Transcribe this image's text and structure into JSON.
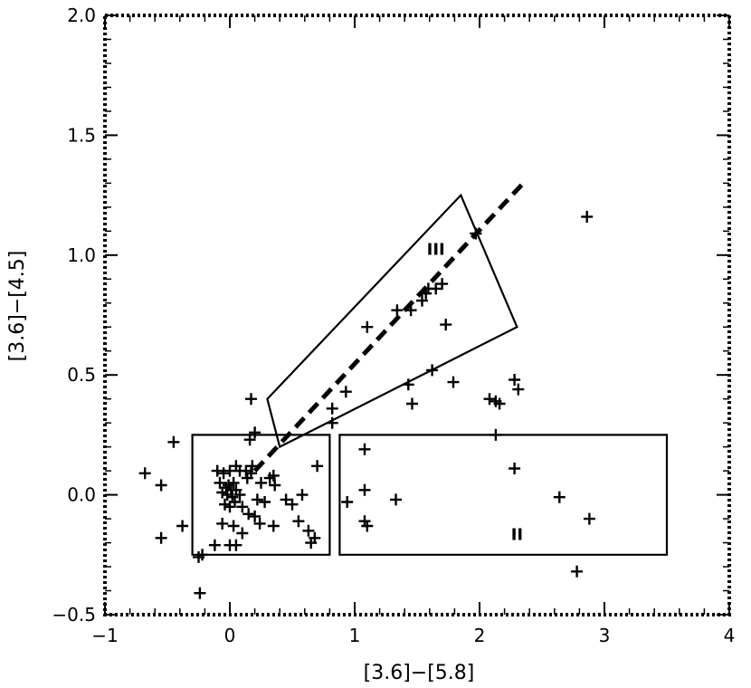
{
  "chart_data": {
    "type": "scatter",
    "title": "",
    "xlabel": "[3.6]−[5.8]",
    "ylabel": "[3.6]−[4.5]",
    "xlim": [
      -1,
      4
    ],
    "ylim": [
      -0.5,
      2.0
    ],
    "x_major_ticks": [
      -1,
      0,
      1,
      2,
      3,
      4
    ],
    "x_tick_labels": [
      "−1",
      "0",
      "1",
      "2",
      "3",
      "4"
    ],
    "y_major_ticks": [
      -0.5,
      0.0,
      0.5,
      1.0,
      1.5,
      2.0
    ],
    "y_tick_labels": [
      "−0.5",
      "0.0",
      "0.5",
      "1.0",
      "1.5",
      "2.0"
    ],
    "grid": false,
    "marker": "plus",
    "colors": {
      "ink": "#000000",
      "background": "#ffffff"
    },
    "series": [
      {
        "points": [
          [
            -0.68,
            0.09
          ],
          [
            -0.55,
            0.04
          ],
          [
            -0.45,
            0.22
          ],
          [
            -0.38,
            -0.13
          ],
          [
            -0.55,
            -0.18
          ],
          [
            -0.22,
            -0.25
          ],
          [
            -0.25,
            -0.26
          ],
          [
            -0.24,
            -0.41
          ],
          [
            -0.12,
            -0.21
          ],
          [
            0.0,
            -0.21
          ],
          [
            0.05,
            -0.21
          ],
          [
            0.17,
            0.4
          ],
          [
            0.2,
            0.26
          ],
          [
            0.16,
            0.23
          ],
          [
            -0.1,
            0.1
          ],
          [
            -0.05,
            0.09
          ],
          [
            0.0,
            0.1
          ],
          [
            0.05,
            0.12
          ],
          [
            0.08,
            0.1
          ],
          [
            0.13,
            0.1
          ],
          [
            0.18,
            0.12
          ],
          [
            -0.08,
            0.05
          ],
          [
            -0.03,
            0.03
          ],
          [
            -0.01,
            0.04
          ],
          [
            0.01,
            0.02
          ],
          [
            0.03,
            0.05
          ],
          [
            -0.06,
            0.01
          ],
          [
            -0.02,
            0.0
          ],
          [
            0.02,
            -0.01
          ],
          [
            0.05,
            0.02
          ],
          [
            -0.04,
            -0.04
          ],
          [
            0.0,
            -0.05
          ],
          [
            0.04,
            -0.03
          ],
          [
            0.08,
            0.0
          ],
          [
            0.1,
            -0.05
          ],
          [
            -0.06,
            -0.12
          ],
          [
            0.03,
            -0.13
          ],
          [
            0.1,
            -0.16
          ],
          [
            0.15,
            -0.08
          ],
          [
            0.2,
            -0.09
          ],
          [
            0.14,
            0.07
          ],
          [
            0.17,
            0.09
          ],
          [
            0.25,
            0.05
          ],
          [
            0.22,
            -0.02
          ],
          [
            0.28,
            -0.03
          ],
          [
            0.32,
            0.07
          ],
          [
            0.35,
            0.08
          ],
          [
            0.36,
            0.04
          ],
          [
            0.24,
            -0.12
          ],
          [
            0.35,
            -0.13
          ],
          [
            0.45,
            -0.02
          ],
          [
            0.5,
            -0.04
          ],
          [
            0.58,
            0.0
          ],
          [
            0.55,
            -0.11
          ],
          [
            0.63,
            -0.15
          ],
          [
            0.65,
            -0.2
          ],
          [
            0.68,
            -0.18
          ],
          [
            0.7,
            0.12
          ],
          [
            0.82,
            0.3
          ],
          [
            0.82,
            0.36
          ],
          [
            0.93,
            0.43
          ],
          [
            0.94,
            -0.03
          ],
          [
            1.08,
            0.19
          ],
          [
            1.08,
            0.02
          ],
          [
            1.08,
            -0.11
          ],
          [
            1.1,
            -0.13
          ],
          [
            1.1,
            0.7
          ],
          [
            1.33,
            -0.02
          ],
          [
            1.34,
            0.77
          ],
          [
            1.43,
            0.46
          ],
          [
            1.45,
            0.77
          ],
          [
            1.46,
            0.38
          ],
          [
            1.54,
            0.81
          ],
          [
            1.57,
            0.84
          ],
          [
            1.59,
            0.86
          ],
          [
            1.62,
            0.52
          ],
          [
            1.65,
            0.86
          ],
          [
            1.7,
            0.88
          ],
          [
            1.73,
            0.71
          ],
          [
            1.79,
            0.47
          ],
          [
            1.97,
            1.09
          ],
          [
            2.08,
            0.4
          ],
          [
            2.13,
            0.39
          ],
          [
            2.13,
            0.25
          ],
          [
            2.16,
            0.38
          ],
          [
            2.28,
            0.48
          ],
          [
            2.28,
            0.11
          ],
          [
            2.31,
            0.44
          ],
          [
            2.64,
            -0.01
          ],
          [
            2.78,
            -0.32
          ],
          [
            2.86,
            1.16
          ],
          [
            2.88,
            -0.1
          ]
        ]
      }
    ],
    "regions": [
      {
        "label": "",
        "corners": [
          [
            -0.3,
            -0.25
          ],
          [
            0.8,
            -0.25
          ],
          [
            0.8,
            0.25
          ],
          [
            -0.3,
            0.25
          ]
        ]
      },
      {
        "label": "II",
        "label_at": [
          2.3,
          -0.17
        ],
        "corners": [
          [
            0.88,
            -0.25
          ],
          [
            3.5,
            -0.25
          ],
          [
            3.5,
            0.25
          ],
          [
            0.88,
            0.25
          ]
        ]
      },
      {
        "label": "III",
        "label_at": [
          1.65,
          1.02
        ],
        "corners": [
          [
            0.3,
            0.4
          ],
          [
            1.85,
            1.25
          ],
          [
            2.3,
            0.7
          ],
          [
            0.4,
            0.2
          ]
        ]
      }
    ],
    "dashed_line": [
      [
        0.2,
        0.1
      ],
      [
        2.35,
        1.3
      ]
    ]
  }
}
